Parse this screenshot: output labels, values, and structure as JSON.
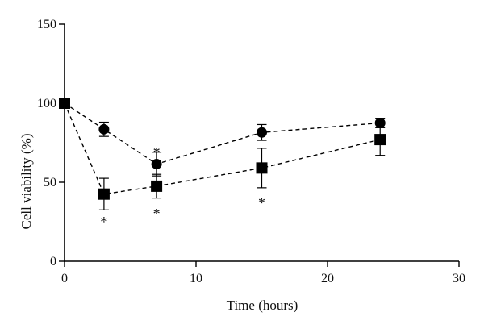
{
  "chart_data": {
    "type": "line",
    "title": "",
    "xlabel": "Time (hours)",
    "ylabel": "Cell viability (%)",
    "xlim": [
      0,
      30
    ],
    "ylim": [
      0,
      150
    ],
    "x_ticks": [
      0,
      10,
      20,
      30
    ],
    "y_ticks": [
      0,
      50,
      100,
      150
    ],
    "grid": false,
    "series": [
      {
        "marker": "circle",
        "line_style": "dashed",
        "color": "#000000",
        "points": [
          {
            "x": 0,
            "y": 100,
            "err": 0
          },
          {
            "x": 3,
            "y": 83.5,
            "err": 4.5
          },
          {
            "x": 7,
            "y": 61.5,
            "err": 7.5
          },
          {
            "x": 15,
            "y": 81.5,
            "err": 5
          },
          {
            "x": 24,
            "y": 87.5,
            "err": 3
          }
        ]
      },
      {
        "marker": "square",
        "line_style": "dashed",
        "color": "#000000",
        "points": [
          {
            "x": 0,
            "y": 100,
            "err": 0
          },
          {
            "x": 3,
            "y": 42.5,
            "err": 10
          },
          {
            "x": 7,
            "y": 47.5,
            "err": 7.5
          },
          {
            "x": 15,
            "y": 59,
            "err": 12.5
          },
          {
            "x": 24,
            "y": 77,
            "err": 10
          }
        ]
      }
    ],
    "annotations": [
      {
        "text": "*",
        "x": 3,
        "y": 26
      },
      {
        "text": "*",
        "x": 7,
        "y": 70
      },
      {
        "text": "*",
        "x": 7,
        "y": 31
      },
      {
        "text": "*",
        "x": 15,
        "y": 38
      }
    ]
  }
}
